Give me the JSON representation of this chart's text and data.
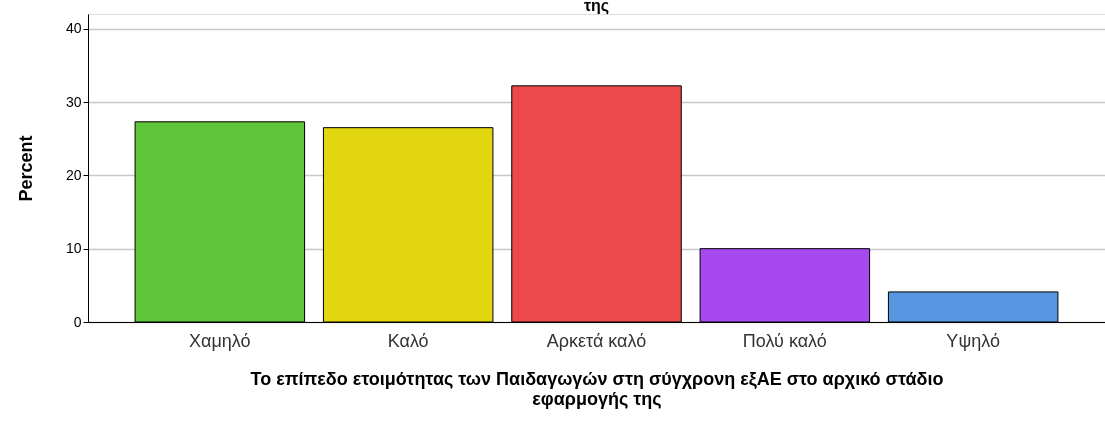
{
  "chart_data": {
    "type": "bar",
    "title": "της",
    "xlabel": "Το επίπεδο ετοιμότητας των Παιδαγωγών στη σύγχρονη εξΑΕ στο αρχικό στάδιο εφαρμογής της",
    "ylabel": "Percent",
    "categories": [
      "Χαμηλό",
      "Καλό",
      "Αρκετά καλό",
      "Πολύ καλό",
      "Υψηλό"
    ],
    "values": [
      27.3,
      26.5,
      32.2,
      10.0,
      4.1
    ],
    "colors": [
      "#5ec43a",
      "#e2d70f",
      "#ec4a4a",
      "#a64af0",
      "#5896e2"
    ],
    "ylim": [
      0,
      42
    ],
    "yticks": [
      0,
      10,
      20,
      30,
      40
    ],
    "grid": "y",
    "legend": false
  }
}
